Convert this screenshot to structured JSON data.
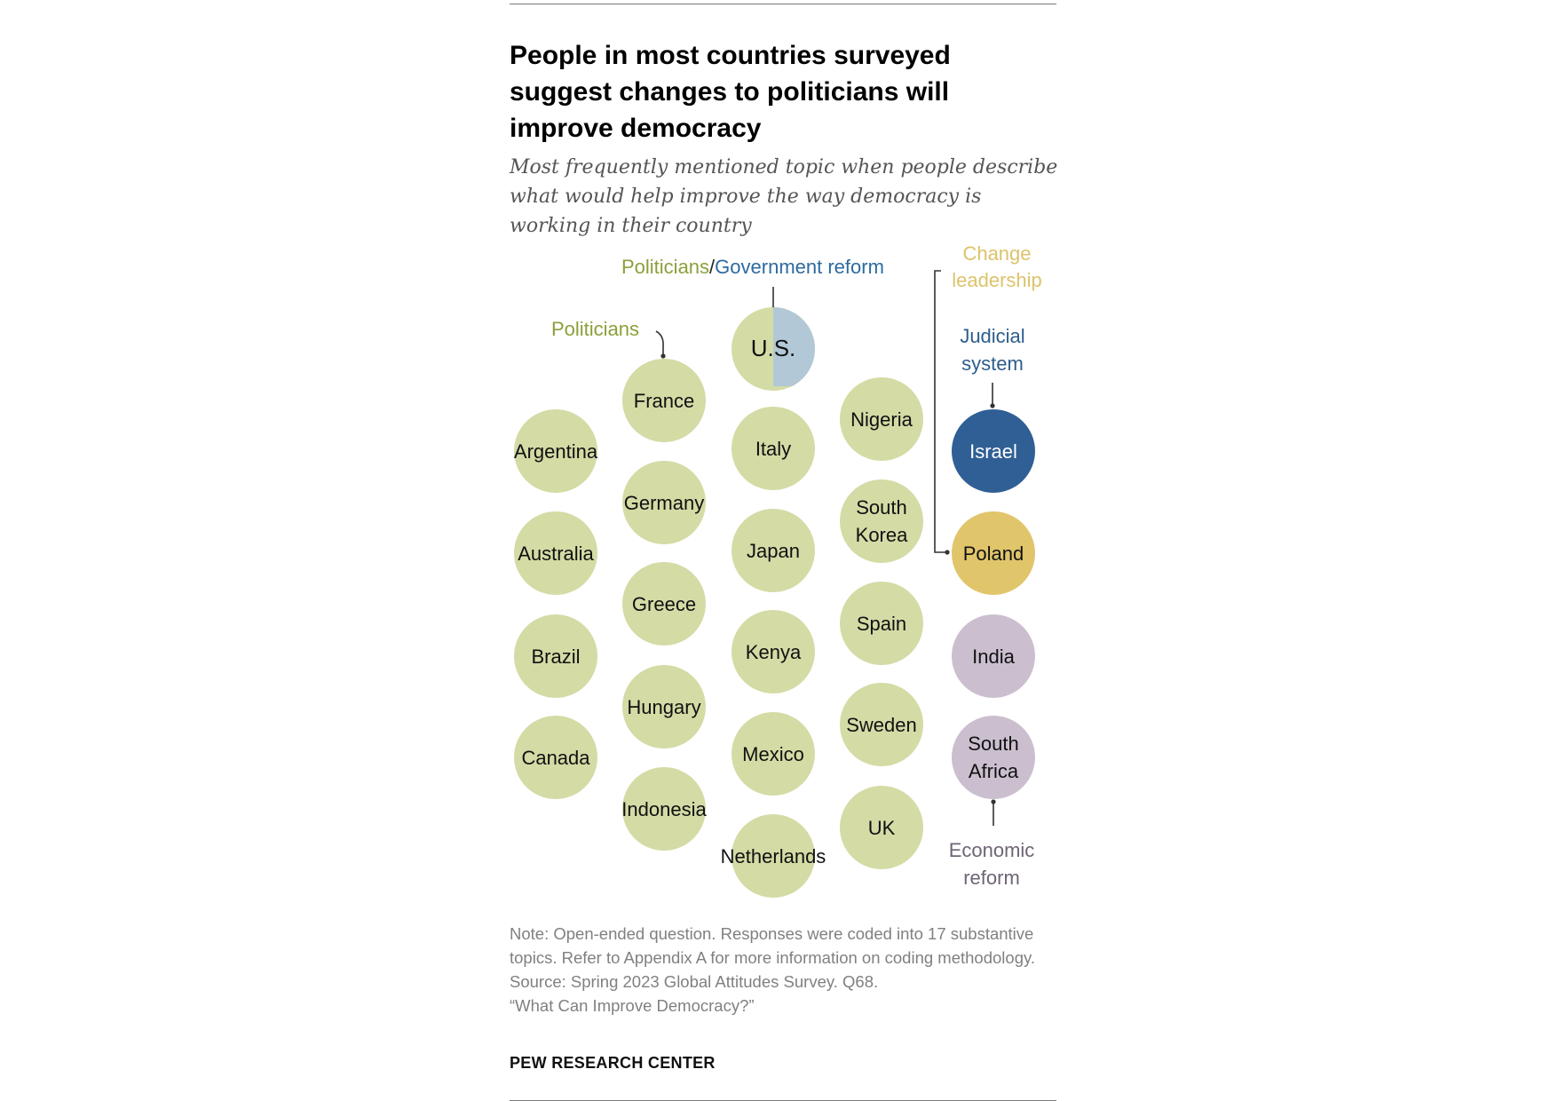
{
  "header": {
    "title": "People in most countries surveyed suggest changes to politicians will improve democracy",
    "subtitle": "Most frequently mentioned topic when people describe what would help improve the way democracy is working in their country"
  },
  "footer": {
    "note": "Note: Open-ended question. Responses were coded into 17 substantive topics. Refer to Appendix A for more information on coding methodology.",
    "source": "Source: Spring 2023 Global Attitudes Survey. Q68.",
    "source_title": "“What Can Improve Democracy?”",
    "logo": "PEW RESEARCH CENTER"
  },
  "colors": {
    "politicians": "#d4dba5",
    "government_reform": "#b2c8d6",
    "judicial_system": "#2f5f94",
    "change_leadership": "#e1c56b",
    "economic_reform": "#cbbfcf",
    "label_politicians": "#8aa03a",
    "label_government": "#2d6a9e",
    "label_judicial": "#2c5e8c",
    "label_leadership": "#dcc36b",
    "label_economic": "#6f6475"
  },
  "chart_data": {
    "type": "bubble-grid",
    "categories": [
      {
        "key": "politicians",
        "label": "Politicians"
      },
      {
        "key": "politicians_government",
        "label_a": "Politicians",
        "label_sep": "/",
        "label_b": "Government reform"
      },
      {
        "key": "change_leadership",
        "label": "Change leadership"
      },
      {
        "key": "judicial_system",
        "label": "Judicial system"
      },
      {
        "key": "economic_reform",
        "label": "Economic reform"
      }
    ],
    "countries": [
      {
        "name": "Argentina",
        "topic": "politicians"
      },
      {
        "name": "Australia",
        "topic": "politicians"
      },
      {
        "name": "Brazil",
        "topic": "politicians"
      },
      {
        "name": "Canada",
        "topic": "politicians"
      },
      {
        "name": "France",
        "topic": "politicians"
      },
      {
        "name": "Germany",
        "topic": "politicians"
      },
      {
        "name": "Greece",
        "topic": "politicians"
      },
      {
        "name": "Hungary",
        "topic": "politicians"
      },
      {
        "name": "Indonesia",
        "topic": "politicians"
      },
      {
        "name": "U.S.",
        "topic": "politicians_government"
      },
      {
        "name": "Italy",
        "topic": "politicians"
      },
      {
        "name": "Japan",
        "topic": "politicians"
      },
      {
        "name": "Kenya",
        "topic": "politicians"
      },
      {
        "name": "Mexico",
        "topic": "politicians"
      },
      {
        "name": "Netherlands",
        "topic": "politicians"
      },
      {
        "name": "Nigeria",
        "topic": "politicians"
      },
      {
        "name": "South Korea",
        "topic": "politicians"
      },
      {
        "name": "Spain",
        "topic": "politicians"
      },
      {
        "name": "Sweden",
        "topic": "politicians"
      },
      {
        "name": "UK",
        "topic": "politicians"
      },
      {
        "name": "Israel",
        "topic": "judicial_system"
      },
      {
        "name": "Poland",
        "topic": "change_leadership"
      },
      {
        "name": "India",
        "topic": "economic_reform"
      },
      {
        "name": "South Africa",
        "topic": "economic_reform"
      }
    ]
  }
}
